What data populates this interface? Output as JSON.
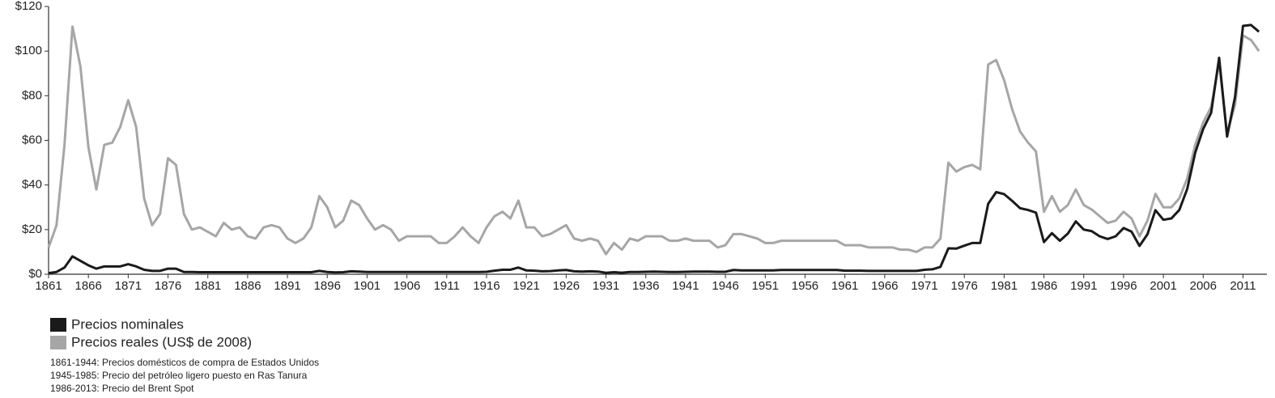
{
  "chart_data": {
    "type": "line",
    "x": [
      1861,
      1862,
      1863,
      1864,
      1865,
      1866,
      1867,
      1868,
      1869,
      1870,
      1871,
      1872,
      1873,
      1874,
      1875,
      1876,
      1877,
      1878,
      1879,
      1880,
      1881,
      1882,
      1883,
      1884,
      1885,
      1886,
      1887,
      1888,
      1889,
      1890,
      1891,
      1892,
      1893,
      1894,
      1895,
      1896,
      1897,
      1898,
      1899,
      1900,
      1901,
      1902,
      1903,
      1904,
      1905,
      1906,
      1907,
      1908,
      1909,
      1910,
      1911,
      1912,
      1913,
      1914,
      1915,
      1916,
      1917,
      1918,
      1919,
      1920,
      1921,
      1922,
      1923,
      1924,
      1925,
      1926,
      1927,
      1928,
      1929,
      1930,
      1931,
      1932,
      1933,
      1934,
      1935,
      1936,
      1937,
      1938,
      1939,
      1940,
      1941,
      1942,
      1943,
      1944,
      1945,
      1946,
      1947,
      1948,
      1949,
      1950,
      1951,
      1952,
      1953,
      1954,
      1955,
      1956,
      1957,
      1958,
      1959,
      1960,
      1961,
      1962,
      1963,
      1964,
      1965,
      1966,
      1967,
      1968,
      1969,
      1970,
      1971,
      1972,
      1973,
      1974,
      1975,
      1976,
      1977,
      1978,
      1979,
      1980,
      1981,
      1982,
      1983,
      1984,
      1985,
      1986,
      1987,
      1988,
      1989,
      1990,
      1991,
      1992,
      1993,
      1994,
      1995,
      1996,
      1997,
      1998,
      1999,
      2000,
      2001,
      2002,
      2003,
      2004,
      2005,
      2006,
      2007,
      2008,
      2009,
      2010,
      2011,
      2012,
      2013
    ],
    "series": [
      {
        "name": "Precios nominales",
        "color": "#1a1a1a",
        "values": [
          0.5,
          1,
          3,
          8,
          6,
          4,
          2.5,
          3.5,
          3.5,
          3.5,
          4.5,
          3.5,
          2,
          1.5,
          1.5,
          2.5,
          2.5,
          1,
          1,
          0.9,
          0.9,
          0.9,
          0.9,
          0.9,
          0.9,
          0.9,
          0.9,
          0.9,
          0.9,
          0.9,
          0.9,
          0.9,
          0.9,
          0.9,
          1.5,
          1,
          0.8,
          0.9,
          1.3,
          1.2,
          1,
          1,
          1,
          1,
          1,
          1,
          1,
          1,
          1,
          1,
          1,
          1,
          1,
          1,
          1,
          1.1,
          1.6,
          2,
          2,
          3,
          1.7,
          1.6,
          1.3,
          1.4,
          1.7,
          1.9,
          1.3,
          1.2,
          1.3,
          1.2,
          0.65,
          0.9,
          0.7,
          1,
          1,
          1.1,
          1.2,
          1.1,
          1,
          1,
          1.1,
          1.2,
          1.2,
          1.2,
          1.1,
          1.1,
          1.9,
          1.7,
          1.7,
          1.7,
          1.7,
          1.7,
          1.9,
          1.9,
          1.9,
          1.9,
          1.9,
          1.9,
          1.9,
          1.9,
          1.6,
          1.6,
          1.6,
          1.5,
          1.5,
          1.5,
          1.5,
          1.5,
          1.5,
          1.5,
          2,
          2.2,
          3.3,
          11.6,
          11.5,
          12.8,
          14,
          14,
          31.6,
          36.8,
          35.9,
          32.9,
          29.6,
          28.8,
          27.6,
          14.4,
          18.4,
          15,
          18.2,
          23.7,
          20,
          19.3,
          17,
          15.8,
          17,
          20.7,
          19.1,
          12.7,
          17.9,
          28.7,
          24.4,
          25,
          28.8,
          38.3,
          54.5,
          65.1,
          72.4,
          97,
          61.7,
          79.5,
          111.3,
          111.7,
          108.7
        ]
      },
      {
        "name": "Precios reales (US$ de 2008)",
        "color": "#a6a6a6",
        "values": [
          12,
          22,
          58,
          111,
          93,
          57,
          38,
          58,
          59,
          66,
          78,
          66,
          34,
          22,
          27,
          52,
          49,
          27,
          20,
          21,
          19,
          17,
          23,
          20,
          21,
          17,
          16,
          21,
          22,
          21,
          16,
          14,
          16,
          21,
          35,
          30,
          21,
          24,
          33,
          31,
          25,
          20,
          22,
          20,
          15,
          17,
          17,
          17,
          17,
          14,
          14,
          17,
          21,
          17,
          14,
          21,
          26,
          28,
          25,
          33,
          21,
          21,
          17,
          18,
          20,
          22,
          16,
          15,
          16,
          15,
          9,
          14,
          11,
          16,
          15,
          17,
          17,
          17,
          15,
          15,
          16,
          15,
          15,
          15,
          12,
          13,
          18,
          18,
          17,
          16,
          14,
          14,
          15,
          15,
          15,
          15,
          15,
          15,
          15,
          15,
          13,
          13,
          13,
          12,
          12,
          12,
          12,
          11,
          11,
          10,
          12,
          12,
          16,
          50,
          46,
          48,
          49,
          47,
          94,
          96,
          87,
          74,
          64,
          59,
          55,
          28,
          35,
          28,
          31,
          38,
          31,
          29,
          26,
          23,
          24,
          28,
          25,
          17,
          24,
          36,
          30,
          30,
          34,
          43,
          58,
          68,
          75,
          95,
          63,
          76,
          107,
          105,
          100
        ]
      }
    ],
    "xlim": [
      1861,
      2014
    ],
    "xticks": [
      1861,
      1866,
      1871,
      1876,
      1881,
      1886,
      1891,
      1896,
      1901,
      1906,
      1911,
      1916,
      1921,
      1926,
      1931,
      1936,
      1941,
      1946,
      1951,
      1956,
      1961,
      1966,
      1971,
      1976,
      1981,
      1986,
      1991,
      1996,
      2001,
      2006,
      2011
    ],
    "ylim": [
      0,
      120
    ],
    "yticks": [
      {
        "value": 0,
        "label": "$0"
      },
      {
        "value": 20,
        "label": "$20"
      },
      {
        "value": 40,
        "label": "$40"
      },
      {
        "value": 60,
        "label": "$60"
      },
      {
        "value": 80,
        "label": "$80"
      },
      {
        "value": 100,
        "label": "$100"
      },
      {
        "value": 120,
        "label": "$120"
      }
    ],
    "grid": false,
    "notes": [
      "1861-1944: Precios domésticos de compra de Estados Unidos",
      "1945-1985: Precio del petróleo ligero puesto en Ras Tanura",
      "1986-2013: Precio del Brent Spot"
    ]
  }
}
